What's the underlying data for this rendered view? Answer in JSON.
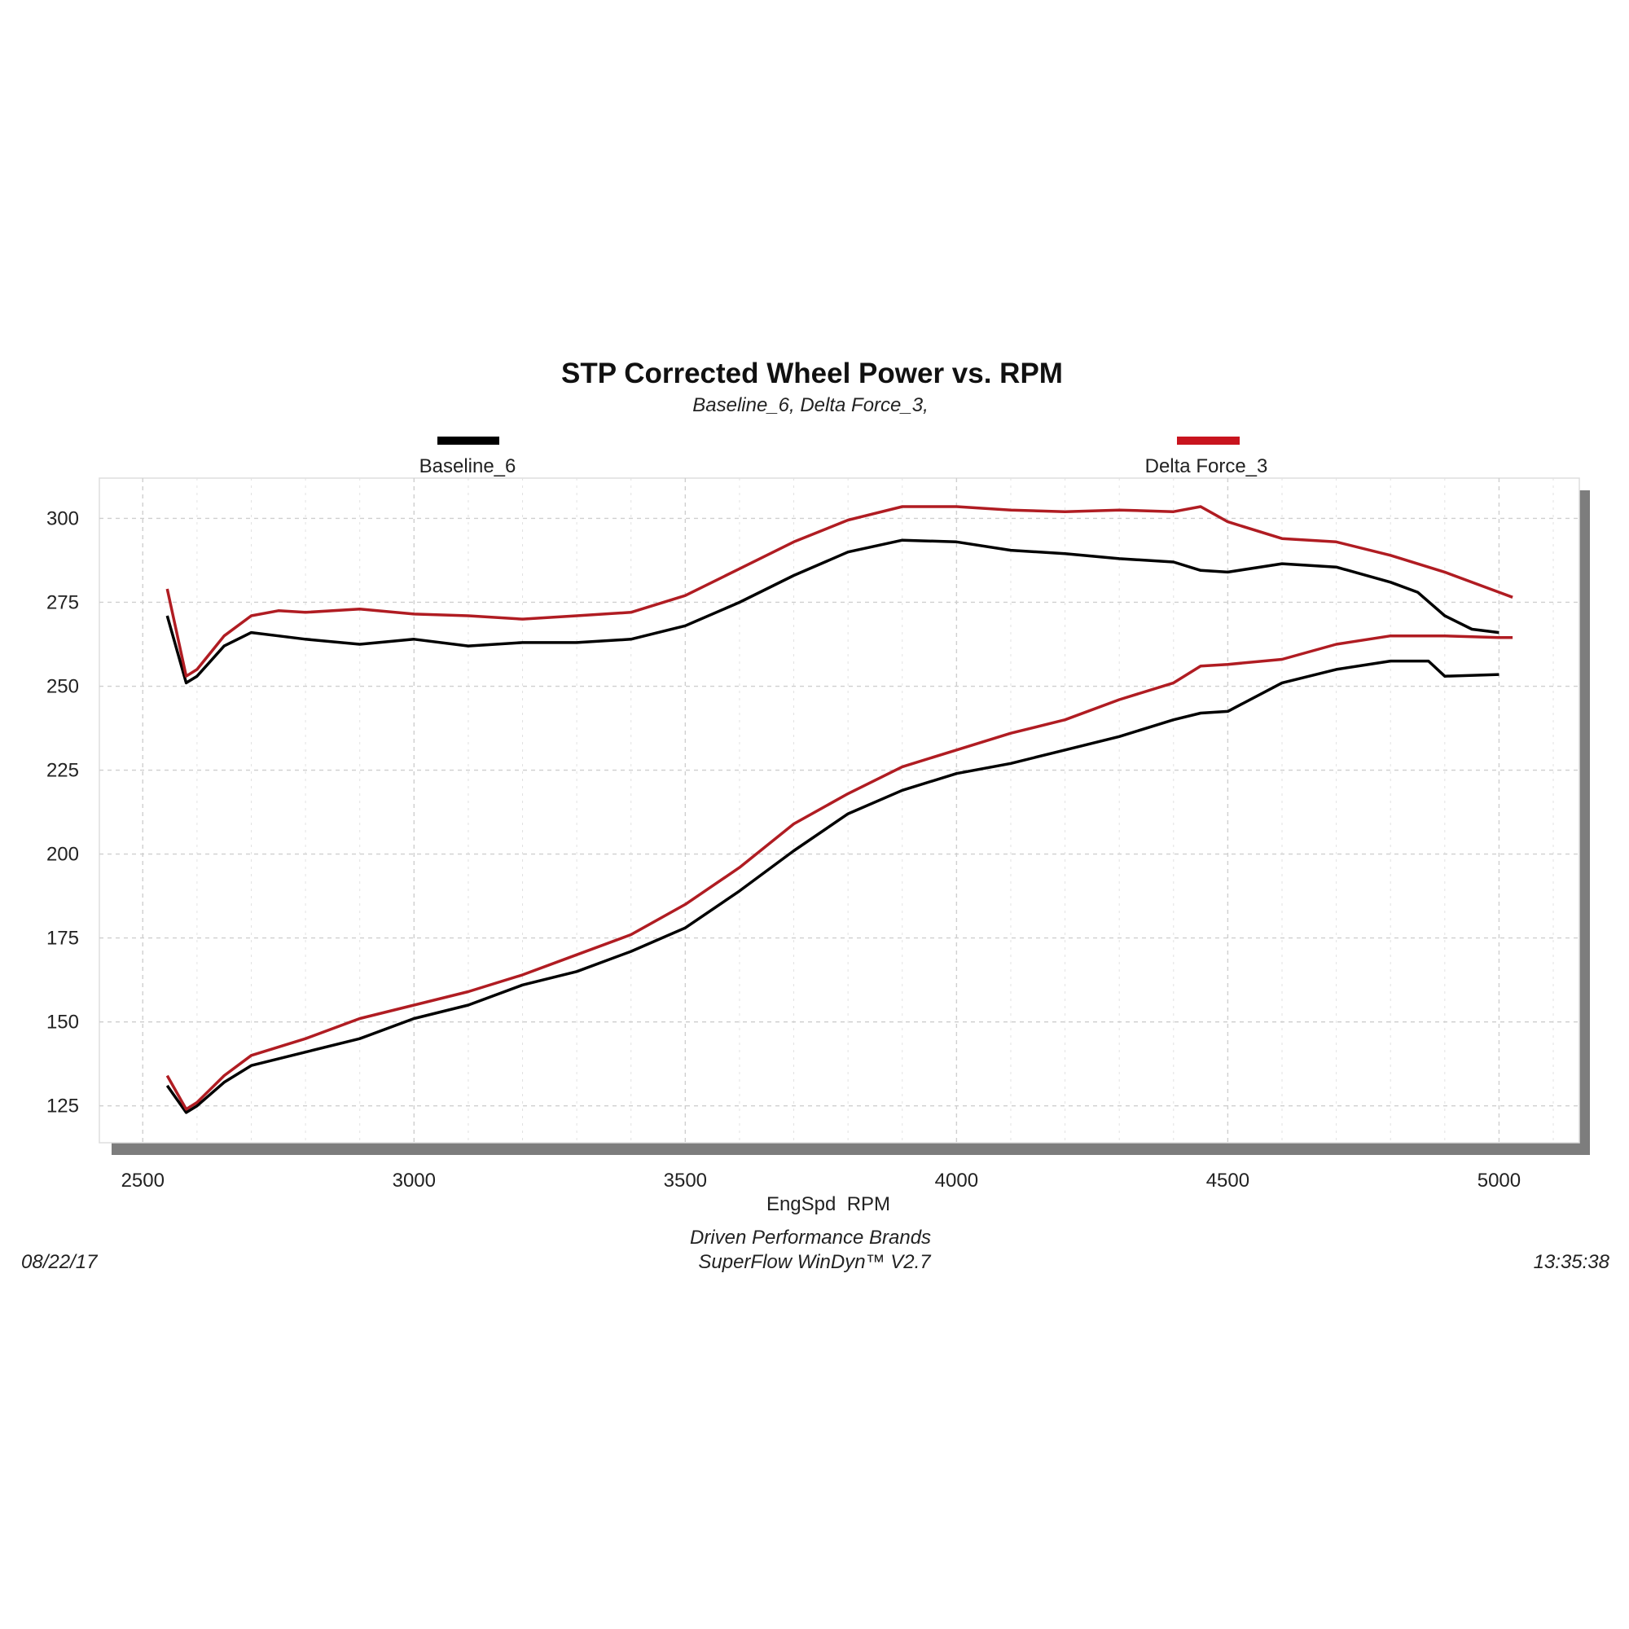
{
  "chart_data": {
    "type": "line",
    "title": "STP Corrected Wheel Power vs. RPM",
    "subtitle": "Baseline_6, Delta Force_3,",
    "xlabel": "EngSpd  RPM",
    "ylabel": "",
    "xlim": [
      2420,
      5148
    ],
    "ylim": [
      114,
      312
    ],
    "x_ticks": [
      "2500",
      "3000",
      "3500",
      "4000",
      "4500",
      "5000"
    ],
    "y_ticks": [
      "300",
      "275",
      "250",
      "225",
      "200",
      "175",
      "150",
      "125"
    ],
    "grid": true,
    "legend_placement": "top",
    "legend": [
      {
        "name": "Baseline_6",
        "color": "#000000"
      },
      {
        "name": "Delta Force_3",
        "color": "#c8141e"
      }
    ],
    "series": [
      {
        "name": "Baseline_6 torque",
        "legend": "Baseline_6",
        "color": "#000000",
        "x": [
          2545,
          2580,
          2600,
          2650,
          2700,
          2750,
          2800,
          2900,
          3000,
          3100,
          3200,
          3300,
          3400,
          3500,
          3600,
          3700,
          3800,
          3900,
          4000,
          4100,
          4200,
          4300,
          4400,
          4450,
          4500,
          4600,
          4700,
          4800,
          4850,
          4900,
          4950,
          5000
        ],
        "y": [
          271,
          251,
          253,
          262,
          266,
          265,
          264,
          262.5,
          264,
          262,
          263,
          263,
          264,
          268,
          275,
          283,
          290,
          293.5,
          293,
          290.5,
          289.5,
          288,
          287,
          284.5,
          284,
          286.5,
          285.5,
          281,
          278,
          271,
          267,
          266
        ]
      },
      {
        "name": "Delta Force_3 torque",
        "legend": "Delta Force_3",
        "color": "#b01c22",
        "x": [
          2545,
          2580,
          2600,
          2650,
          2700,
          2750,
          2800,
          2900,
          3000,
          3100,
          3200,
          3300,
          3400,
          3500,
          3600,
          3700,
          3800,
          3900,
          4000,
          4100,
          4200,
          4300,
          4400,
          4450,
          4500,
          4600,
          4700,
          4800,
          4900,
          5000,
          5025
        ],
        "y": [
          279,
          253,
          255,
          265,
          271,
          272.5,
          272,
          273,
          271.5,
          271,
          270,
          271,
          272,
          277,
          285,
          293,
          299.5,
          303.5,
          303.5,
          302.5,
          302,
          302.5,
          302,
          303.5,
          299,
          294,
          293,
          289,
          284,
          278,
          276.5
        ]
      },
      {
        "name": "Baseline_6 power",
        "legend": "Baseline_6",
        "color": "#000000",
        "x": [
          2545,
          2580,
          2600,
          2650,
          2700,
          2800,
          2900,
          3000,
          3100,
          3200,
          3300,
          3400,
          3500,
          3600,
          3700,
          3800,
          3900,
          4000,
          4100,
          4200,
          4300,
          4400,
          4450,
          4500,
          4600,
          4700,
          4800,
          4870,
          4900,
          5000
        ],
        "y": [
          131,
          123,
          125,
          132,
          137,
          141,
          145,
          151,
          155,
          161,
          165,
          171,
          178,
          189,
          201,
          212,
          219,
          224,
          227,
          231,
          235,
          240,
          242,
          242.5,
          251,
          255,
          257.5,
          257.5,
          253,
          253.5
        ]
      },
      {
        "name": "Delta Force_3 power",
        "legend": "Delta Force_3",
        "color": "#b01c22",
        "x": [
          2545,
          2580,
          2600,
          2650,
          2700,
          2800,
          2900,
          3000,
          3100,
          3200,
          3300,
          3400,
          3500,
          3600,
          3700,
          3800,
          3900,
          4000,
          4100,
          4200,
          4300,
          4400,
          4450,
          4500,
          4600,
          4700,
          4800,
          4900,
          5000,
          5025
        ],
        "y": [
          134,
          124,
          126,
          134,
          140,
          145,
          151,
          155,
          159,
          164,
          170,
          176,
          185,
          196,
          209,
          218,
          226,
          231,
          236,
          240,
          246,
          251,
          256,
          256.5,
          258,
          262.5,
          265,
          265,
          264.5,
          264.5
        ]
      }
    ]
  },
  "footer": {
    "company": "Driven Performance Brands",
    "software": "SuperFlow WinDyn™ V2.7",
    "date": "08/22/17",
    "time": "13:35:38"
  }
}
